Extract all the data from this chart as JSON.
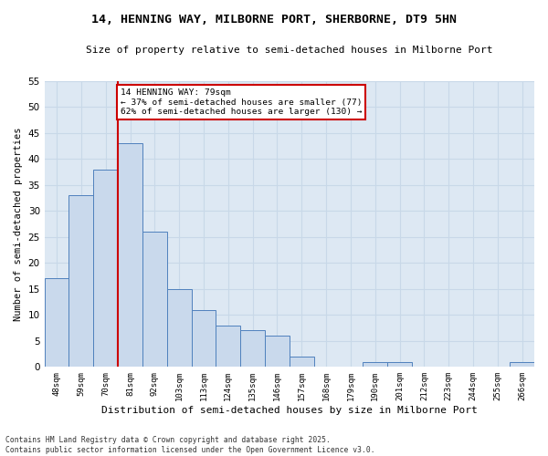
{
  "title": "14, HENNING WAY, MILBORNE PORT, SHERBORNE, DT9 5HN",
  "subtitle": "Size of property relative to semi-detached houses in Milborne Port",
  "xlabel": "Distribution of semi-detached houses by size in Milborne Port",
  "ylabel": "Number of semi-detached properties",
  "categories": [
    "48sqm",
    "59sqm",
    "70sqm",
    "81sqm",
    "92sqm",
    "103sqm",
    "113sqm",
    "124sqm",
    "135sqm",
    "146sqm",
    "157sqm",
    "168sqm",
    "179sqm",
    "190sqm",
    "201sqm",
    "212sqm",
    "223sqm",
    "244sqm",
    "255sqm",
    "266sqm"
  ],
  "values": [
    17,
    33,
    38,
    43,
    26,
    15,
    11,
    8,
    7,
    6,
    2,
    0,
    0,
    1,
    1,
    0,
    0,
    0,
    0,
    1
  ],
  "bar_color": "#c9d9ec",
  "bar_edge_color": "#4f81bd",
  "vline_x": 2.5,
  "annotation_title": "14 HENNING WAY: 79sqm",
  "annotation_line1": "← 37% of semi-detached houses are smaller (77)",
  "annotation_line2": "62% of semi-detached houses are larger (130) →",
  "annotation_box_color": "#ffffff",
  "annotation_box_edge_color": "#cc0000",
  "vline_color": "#cc0000",
  "grid_color": "#c8d8e8",
  "background_color": "#dde8f3",
  "ylim": [
    0,
    55
  ],
  "yticks": [
    0,
    5,
    10,
    15,
    20,
    25,
    30,
    35,
    40,
    45,
    50,
    55
  ],
  "footnote": "Contains HM Land Registry data © Crown copyright and database right 2025.\nContains public sector information licensed under the Open Government Licence v3.0."
}
